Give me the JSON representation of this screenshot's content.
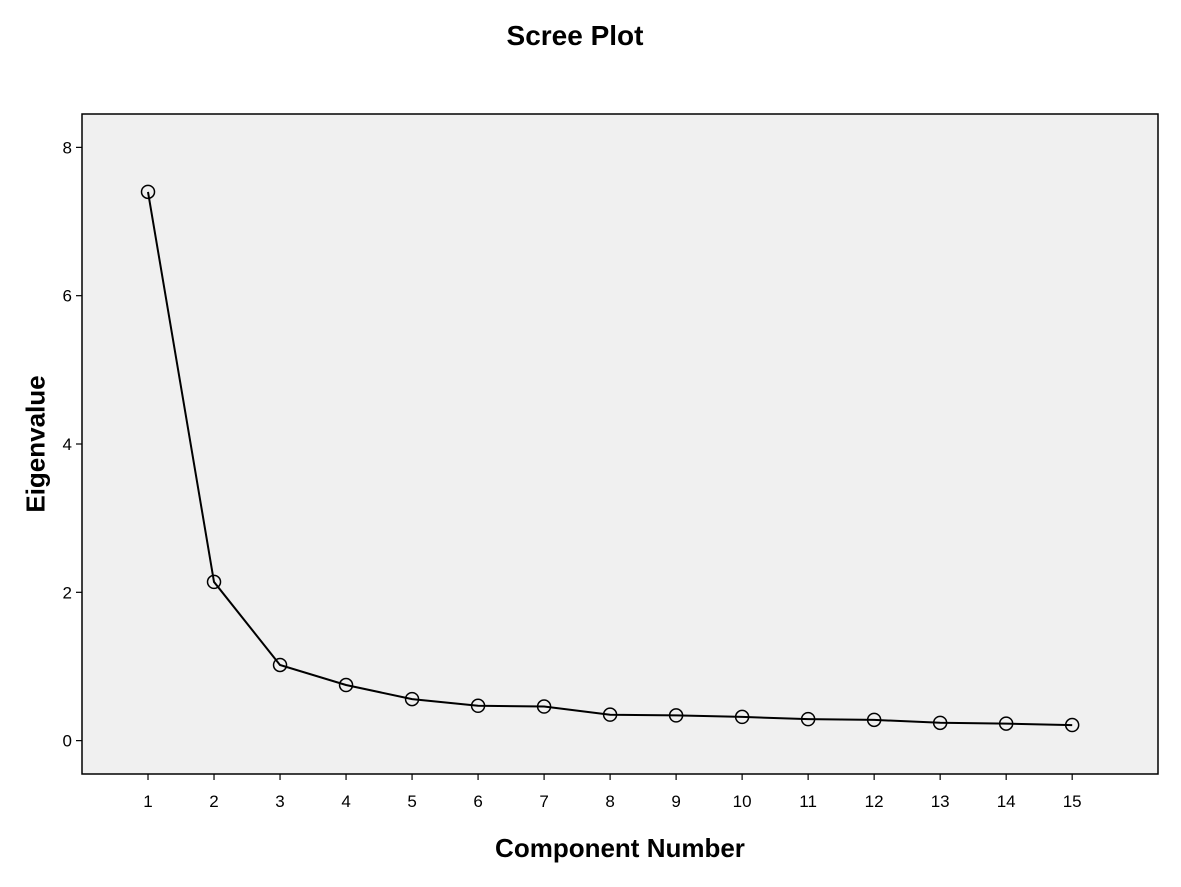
{
  "chart_data": {
    "type": "line",
    "title": "Scree Plot",
    "xlabel": "Component Number",
    "ylabel": "Eigenvalue",
    "x": [
      1,
      2,
      3,
      4,
      5,
      6,
      7,
      8,
      9,
      10,
      11,
      12,
      13,
      14,
      15
    ],
    "values": [
      7.4,
      2.14,
      1.02,
      0.75,
      0.56,
      0.47,
      0.46,
      0.35,
      0.34,
      0.32,
      0.29,
      0.28,
      0.24,
      0.23,
      0.21
    ],
    "xlim": [
      0,
      16.3
    ],
    "ylim": [
      -0.45,
      8.45
    ],
    "y_ticks": [
      0,
      2,
      4,
      6,
      8
    ],
    "marker": "open-circle",
    "grid": false,
    "plot_background": "#f0f0f0",
    "line_color": "#000000"
  }
}
